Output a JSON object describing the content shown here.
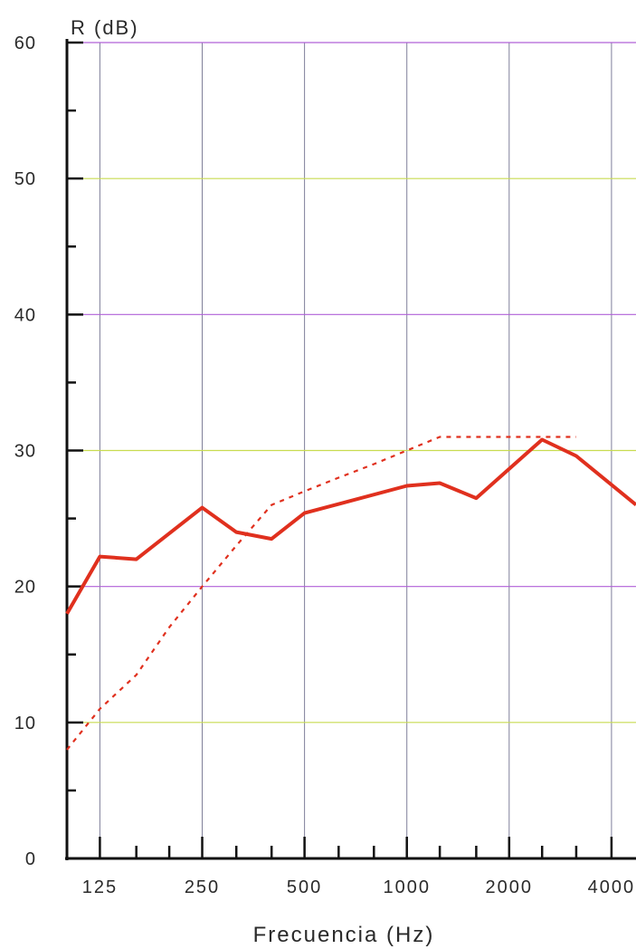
{
  "chart_data": {
    "type": "line",
    "title": "",
    "xlabel": "Frecuencia (Hz)",
    "ylabel": "R (dB)",
    "ylim": [
      0,
      60
    ],
    "y_ticks": [
      "0",
      "10",
      "20",
      "30",
      "40",
      "50",
      "60"
    ],
    "x_scale": "log (third-octave bands)",
    "x_ticks": [
      "125",
      "250",
      "500",
      "1000",
      "2000",
      "4000"
    ],
    "x_bands": [
      100,
      125,
      160,
      200,
      250,
      315,
      400,
      500,
      630,
      800,
      1000,
      1250,
      1600,
      2000,
      2500,
      3150,
      4000
    ],
    "grid": true,
    "series": [
      {
        "style": "solid",
        "color": "#e0301e",
        "x": [
          100,
          125,
          160,
          250,
          315,
          400,
          500,
          1000,
          1250,
          1600,
          2500,
          3150,
          5000
        ],
        "y": [
          18,
          22.2,
          22,
          25.8,
          24,
          23.5,
          25.4,
          27.4,
          27.6,
          26.5,
          30.8,
          29.6,
          25.5
        ]
      },
      {
        "style": "dotted",
        "color": "#e0301e",
        "x": [
          100,
          125,
          160,
          200,
          250,
          315,
          400,
          500,
          630,
          800,
          1000,
          1250,
          1600,
          2000,
          2500,
          3150
        ],
        "y": [
          8,
          11,
          13.5,
          17,
          20,
          23,
          26,
          27,
          28,
          29,
          30,
          31,
          31,
          31,
          31,
          31
        ]
      }
    ],
    "colors": {
      "axis": "#111111",
      "grid_primary": "#b060d8",
      "grid_secondary": "#c8dc50",
      "grid_vertical": "#7f7f9a",
      "text": "#2a2a2a"
    }
  }
}
